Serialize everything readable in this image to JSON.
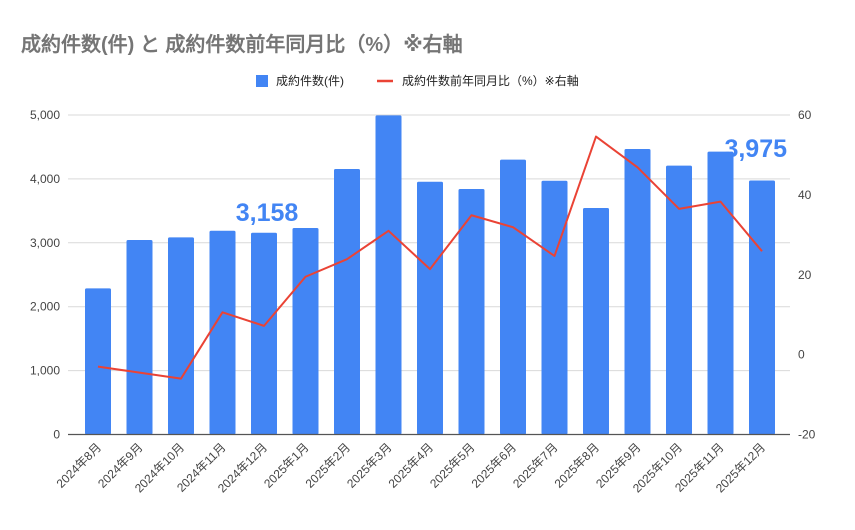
{
  "chart_data": {
    "type": "bar",
    "title": "成約件数(件) と 成約件数前年同月比（%）※右軸",
    "categories": [
      "2024年8月",
      "2024年9月",
      "2024年10月",
      "2024年11月",
      "2024年12月",
      "2025年1月",
      "2025年2月",
      "2025年3月",
      "2025年4月",
      "2025年5月",
      "2025年6月",
      "2025年7月",
      "2025年8月",
      "2025年9月",
      "2025年10月",
      "2025年11月",
      "2025年12月"
    ],
    "series": [
      {
        "name": "成約件数(件)",
        "type": "bar",
        "axis": "left",
        "color": "#4285f4",
        "values": [
          2286,
          3043,
          3085,
          3189,
          3158,
          3231,
          4154,
          4995,
          3956,
          3841,
          4301,
          3972,
          3544,
          4468,
          4207,
          4426,
          3975
        ]
      },
      {
        "name": "成約件数前年同月比（%）※右軸",
        "type": "line",
        "axis": "right",
        "color": "#ea4335",
        "values": [
          -3.0,
          -4.5,
          -6.0,
          10.6,
          7.2,
          19.5,
          23.9,
          31.0,
          21.4,
          34.9,
          31.9,
          24.7,
          54.6,
          46.9,
          36.5,
          38.3,
          25.9
        ]
      }
    ],
    "left_axis": {
      "range": [
        0,
        5000
      ],
      "ticks": [
        "0",
        "1,000",
        "2,000",
        "3,000",
        "4,000",
        "5,000"
      ]
    },
    "right_axis": {
      "range": [
        -20,
        60
      ],
      "ticks": [
        "-20",
        "0",
        "20",
        "40",
        "60"
      ]
    },
    "annotations": [
      {
        "category_index": 4,
        "text": "3,158"
      },
      {
        "category_index": 16,
        "text": "3,975"
      }
    ],
    "legend": "top",
    "grid": true
  }
}
